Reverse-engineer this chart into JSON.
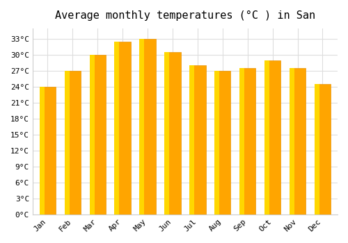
{
  "title": "Average monthly temperatures (°C ) in San",
  "months": [
    "Jan",
    "Feb",
    "Mar",
    "Apr",
    "May",
    "Jun",
    "Jul",
    "Aug",
    "Sep",
    "Oct",
    "Nov",
    "Dec"
  ],
  "values": [
    24,
    27,
    30,
    32.5,
    33,
    30.5,
    28,
    27,
    27.5,
    29,
    27.5,
    24.5
  ],
  "bar_color_main": "#FFA500",
  "bar_color_light": "#FFD700",
  "bar_edge_color": "#E8940A",
  "ylim": [
    0,
    35
  ],
  "yticks": [
    0,
    3,
    6,
    9,
    12,
    15,
    18,
    21,
    24,
    27,
    30,
    33
  ],
  "ytick_labels": [
    "0°C",
    "3°C",
    "6°C",
    "9°C",
    "12°C",
    "15°C",
    "18°C",
    "21°C",
    "24°C",
    "27°C",
    "30°C",
    "33°C"
  ],
  "background_color": "#ffffff",
  "grid_color": "#dddddd",
  "title_fontsize": 11,
  "tick_fontsize": 8,
  "font_family": "monospace"
}
